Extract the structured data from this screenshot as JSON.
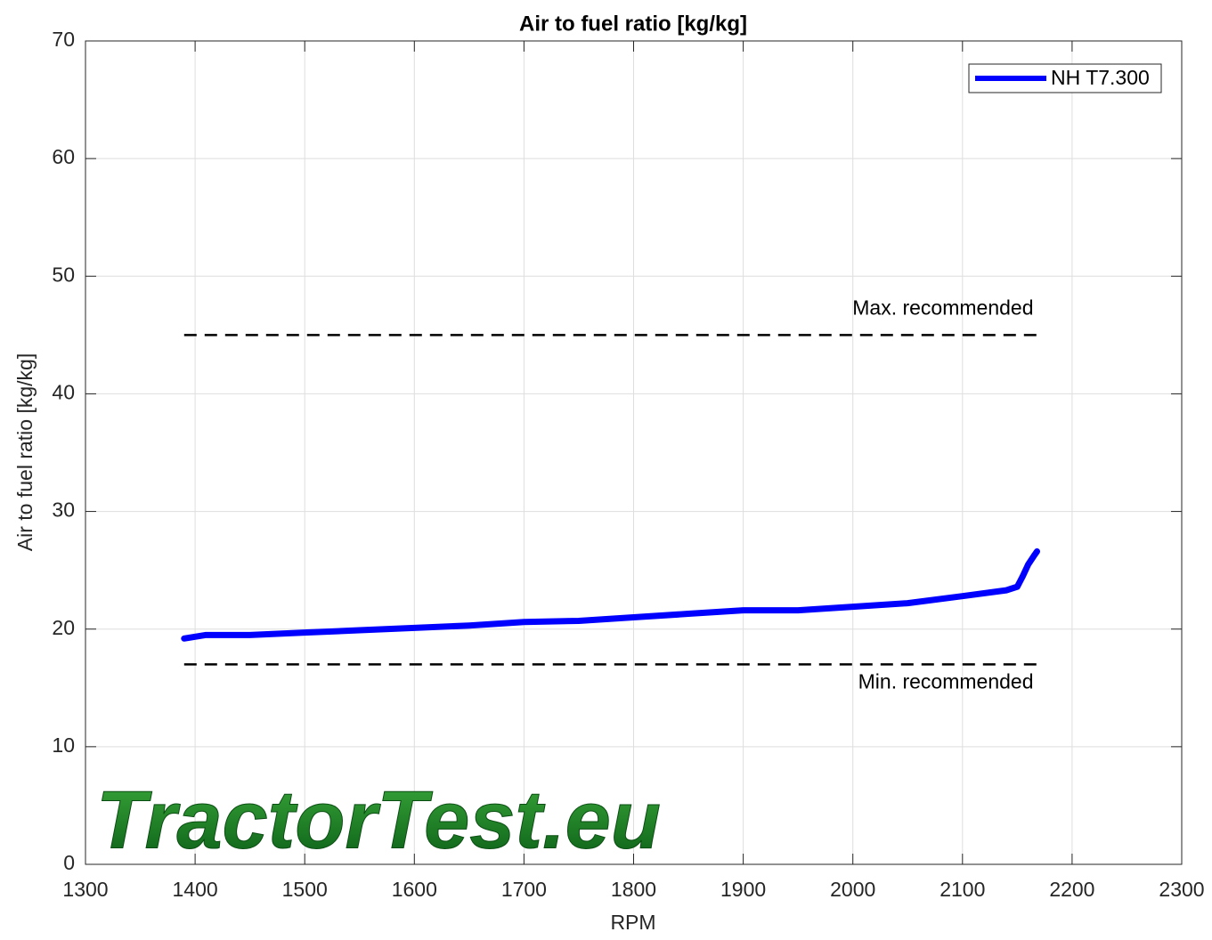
{
  "chart_data": {
    "type": "line",
    "title": "Air to fuel ratio [kg/kg]",
    "xlabel": "RPM",
    "ylabel": "Air to fuel ratio [kg/kg]",
    "xlim": [
      1300,
      2300
    ],
    "xticks": [
      1300,
      1400,
      1500,
      1600,
      1700,
      1800,
      1900,
      2000,
      2100,
      2200,
      2300
    ],
    "ylim": [
      0,
      70
    ],
    "yticks": [
      0,
      10,
      20,
      30,
      40,
      50,
      60,
      70
    ],
    "grid": true,
    "legend": "upper right",
    "series": [
      {
        "name": "NH T7.300",
        "color": "#0000ff",
        "x": [
          1390,
          1410,
          1450,
          1500,
          1550,
          1600,
          1650,
          1700,
          1750,
          1800,
          1850,
          1900,
          1950,
          2000,
          2050,
          2100,
          2140,
          2150,
          2155,
          2160,
          2165,
          2168
        ],
        "values": [
          19.2,
          19.5,
          19.5,
          19.7,
          19.9,
          20.1,
          20.3,
          20.6,
          20.7,
          21.0,
          21.3,
          21.6,
          21.6,
          21.9,
          22.2,
          22.8,
          23.3,
          23.6,
          24.5,
          25.5,
          26.2,
          26.6
        ]
      }
    ],
    "reference_lines": [
      {
        "label": "Max. recommended",
        "value": 45,
        "x": [
          1390,
          2168
        ],
        "color": "#000000"
      },
      {
        "label": "Min. recommended",
        "value": 17,
        "x": [
          1390,
          2168
        ],
        "color": "#000000"
      }
    ],
    "watermark": "TractorTest.eu"
  }
}
